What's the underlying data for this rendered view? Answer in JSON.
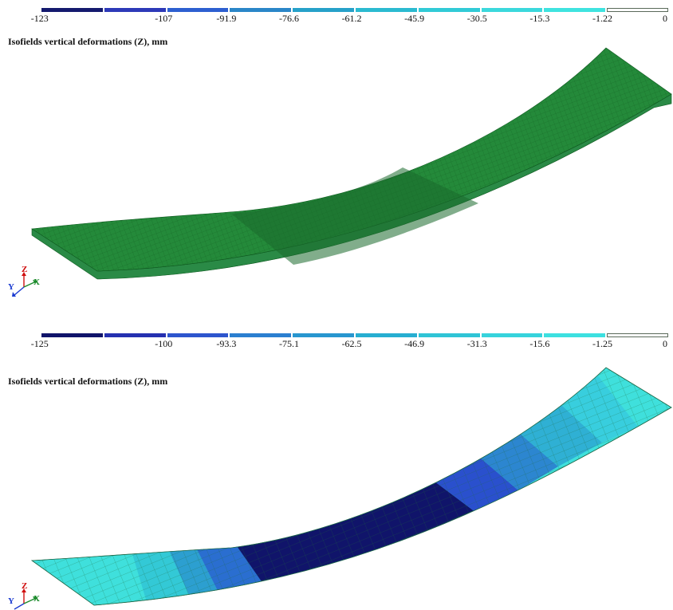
{
  "panels": [
    {
      "legend": {
        "labels": [
          "-123",
          "-107",
          "-91.9",
          "-76.6",
          "-61.2",
          "-45.9",
          "-30.5",
          "-15.3",
          "-1.22",
          "0"
        ],
        "colors": [
          "#141a6e",
          "#2d39b8",
          "#2d5fd0",
          "#2a86c8",
          "#26a1c9",
          "#2bbad0",
          "#31cad6",
          "#3bd8dc",
          "#3fe3df",
          "#ffffff"
        ]
      },
      "title": "Isofields vertical deformations (Z), mm",
      "mesh_color": "#1f7a2e",
      "axes": {
        "y": "Y",
        "z": "Z",
        "x": "X"
      }
    },
    {
      "legend": {
        "labels": [
          "-125",
          "-100",
          "-93.3",
          "-75.1",
          "-62.5",
          "-46.9",
          "-31.3",
          "-15.6",
          "-1.25",
          "0"
        ],
        "colors": [
          "#10146a",
          "#2530b0",
          "#2d55cd",
          "#2b7fd0",
          "#2896cf",
          "#27aed1",
          "#2fc4d6",
          "#36d3dc",
          "#3de0e0",
          "#ffffff"
        ]
      },
      "title": "Isofields vertical deformations (Z), mm",
      "mesh_color": "#1a7a5a",
      "axes": {
        "y": "Y",
        "z": "Z",
        "x": "X"
      }
    }
  ]
}
